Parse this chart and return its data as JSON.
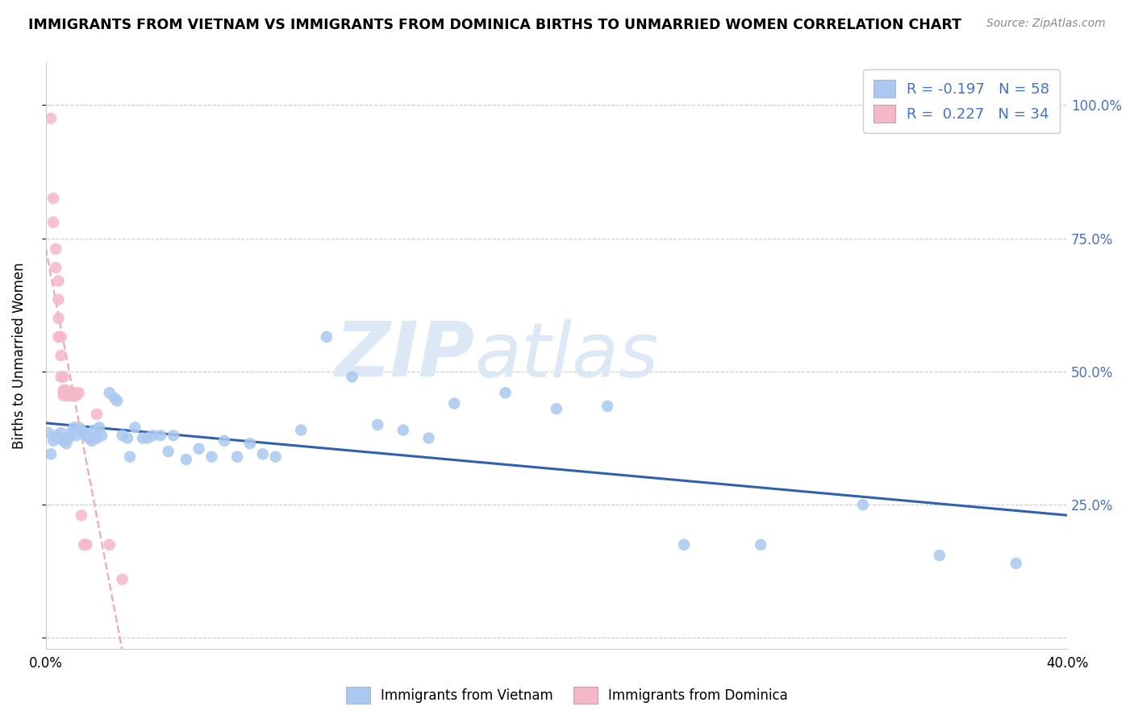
{
  "title": "IMMIGRANTS FROM VIETNAM VS IMMIGRANTS FROM DOMINICA BIRTHS TO UNMARRIED WOMEN CORRELATION CHART",
  "source": "Source: ZipAtlas.com",
  "ylabel": "Births to Unmarried Women",
  "xlim": [
    0.0,
    0.4
  ],
  "ylim": [
    -0.02,
    1.08
  ],
  "yticks": [
    0.0,
    0.25,
    0.5,
    0.75,
    1.0
  ],
  "ytick_labels_right": [
    "",
    "25.0%",
    "50.0%",
    "75.0%",
    "100.0%"
  ],
  "xticks": [
    0.0,
    0.05,
    0.1,
    0.15,
    0.2,
    0.25,
    0.3,
    0.35,
    0.4
  ],
  "xtick_labels": [
    "0.0%",
    "",
    "",
    "",
    "",
    "",
    "",
    "",
    "40.0%"
  ],
  "R_vietnam": -0.197,
  "N_vietnam": 58,
  "R_dominica": 0.227,
  "N_dominica": 34,
  "color_vietnam": "#aac8f0",
  "color_dominica": "#f5b8c8",
  "line_color_vietnam": "#3060b0",
  "line_color_dominica": "#e090a8",
  "axis_label_color": "#4472c4",
  "watermark_zip": "ZIP",
  "watermark_atlas": "atlas",
  "watermark_color": "#dce8f5",
  "vietnam_x": [
    0.001,
    0.002,
    0.003,
    0.004,
    0.005,
    0.006,
    0.007,
    0.008,
    0.009,
    0.01,
    0.011,
    0.012,
    0.013,
    0.014,
    0.015,
    0.016,
    0.017,
    0.018,
    0.019,
    0.02,
    0.021,
    0.022,
    0.025,
    0.027,
    0.028,
    0.03,
    0.032,
    0.033,
    0.035,
    0.038,
    0.04,
    0.042,
    0.045,
    0.048,
    0.05,
    0.055,
    0.06,
    0.065,
    0.07,
    0.075,
    0.08,
    0.085,
    0.09,
    0.1,
    0.11,
    0.12,
    0.13,
    0.14,
    0.15,
    0.16,
    0.18,
    0.2,
    0.22,
    0.25,
    0.28,
    0.32,
    0.35,
    0.38
  ],
  "vietnam_y": [
    0.385,
    0.345,
    0.37,
    0.38,
    0.375,
    0.385,
    0.37,
    0.365,
    0.375,
    0.385,
    0.395,
    0.38,
    0.395,
    0.39,
    0.385,
    0.38,
    0.375,
    0.37,
    0.39,
    0.375,
    0.395,
    0.38,
    0.46,
    0.45,
    0.445,
    0.38,
    0.375,
    0.34,
    0.395,
    0.375,
    0.375,
    0.38,
    0.38,
    0.35,
    0.38,
    0.335,
    0.355,
    0.34,
    0.37,
    0.34,
    0.365,
    0.345,
    0.34,
    0.39,
    0.565,
    0.49,
    0.4,
    0.39,
    0.375,
    0.44,
    0.46,
    0.43,
    0.435,
    0.175,
    0.175,
    0.25,
    0.155,
    0.14
  ],
  "dominica_x": [
    0.002,
    0.003,
    0.003,
    0.004,
    0.004,
    0.005,
    0.005,
    0.005,
    0.005,
    0.006,
    0.006,
    0.006,
    0.007,
    0.007,
    0.007,
    0.007,
    0.008,
    0.008,
    0.009,
    0.009,
    0.01,
    0.01,
    0.01,
    0.011,
    0.011,
    0.012,
    0.012,
    0.013,
    0.014,
    0.015,
    0.016,
    0.02,
    0.025,
    0.03
  ],
  "dominica_y": [
    0.975,
    0.825,
    0.78,
    0.73,
    0.695,
    0.67,
    0.635,
    0.6,
    0.565,
    0.565,
    0.53,
    0.49,
    0.49,
    0.465,
    0.46,
    0.455,
    0.465,
    0.46,
    0.455,
    0.455,
    0.46,
    0.455,
    0.455,
    0.46,
    0.455,
    0.46,
    0.455,
    0.46,
    0.23,
    0.175,
    0.175,
    0.42,
    0.175,
    0.11
  ],
  "legend_box_color": "#4472c4",
  "dominica_line_x_end": 0.032,
  "vietnam_line_x_start": 0.0,
  "vietnam_line_x_end": 0.4
}
